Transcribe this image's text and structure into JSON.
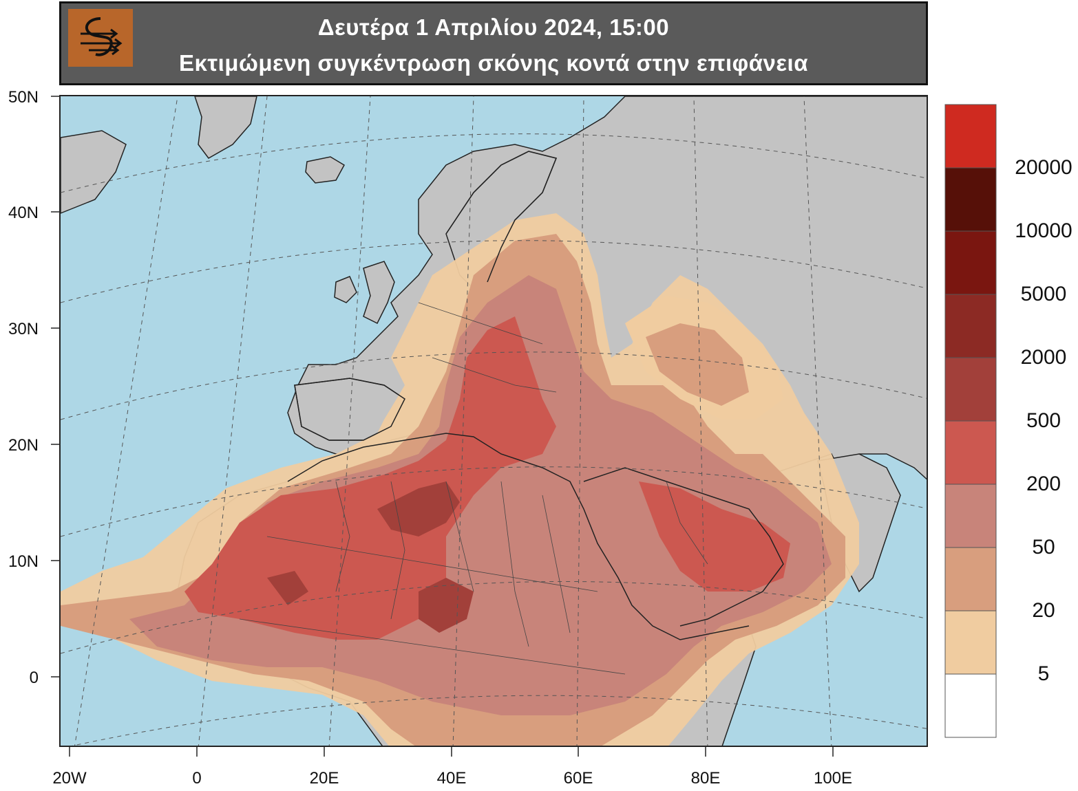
{
  "title": {
    "line1": "Δευτέρα 1 Απριλίου 2024, 15:00",
    "line2": "Εκτιμώμενη συγκέντρωση σκόνης κοντά στην επιφάνεια"
  },
  "axes": {
    "latitude_labels": [
      "50N",
      "40N",
      "30N",
      "20N",
      "10N",
      "0"
    ],
    "longitude_labels": [
      "20W",
      "0",
      "20E",
      "40E",
      "60E",
      "80E",
      "100E"
    ]
  },
  "colorbar": {
    "levels": [
      "20000",
      "10000",
      "5000",
      "2000",
      "500",
      "200",
      "50",
      "20",
      "5"
    ],
    "colors": [
      "#cf2a20",
      "#561008",
      "#7a1610",
      "#8c2a24",
      "#a2403a",
      "#cc5850",
      "#c8847a",
      "#d89e7e",
      "#f0cca0",
      "#ffffff"
    ]
  },
  "colors": {
    "ocean": "#aed7e6",
    "land": "#c3c3c3",
    "title_bg": "#5a5a5a",
    "logo_bg": "#b8662a"
  }
}
